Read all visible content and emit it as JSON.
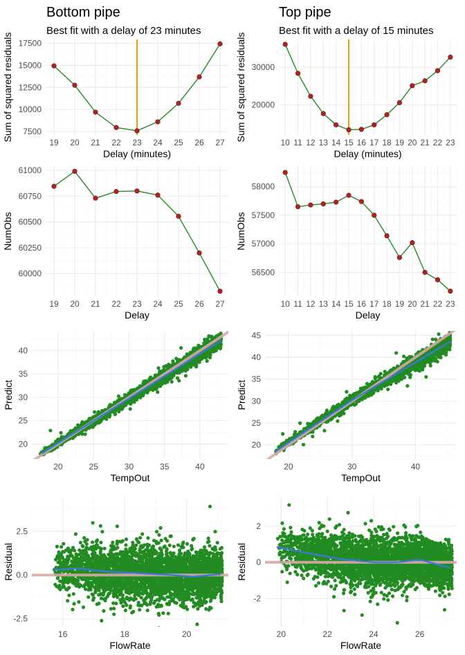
{
  "chart_data": [
    {
      "id": "bottom-ssr",
      "type": "line",
      "title": "Bottom pipe",
      "subtitle": "Best fit with a delay of 23 minutes",
      "xlabel": "Delay (minutes)",
      "ylabel": "Sum of squared residuals",
      "x": [
        19,
        20,
        21,
        22,
        23,
        24,
        25,
        26,
        27
      ],
      "y": [
        14950,
        12750,
        9700,
        7950,
        7580,
        8600,
        10700,
        13700,
        17450
      ],
      "xlim": [
        18.6,
        27.4
      ],
      "ylim": [
        7100,
        17950
      ],
      "xticks": [
        19,
        20,
        21,
        22,
        23,
        24,
        25,
        26,
        27
      ],
      "yticks": [
        7500,
        10000,
        12500,
        15000,
        17500
      ],
      "vline": 23,
      "vline_color": "#e69f00",
      "line_color": "#228b22",
      "point_color": "#b22222",
      "grid": true
    },
    {
      "id": "top-ssr",
      "type": "line",
      "title": "Top pipe",
      "subtitle": "Best fit with a delay of 15 minutes",
      "xlabel": "Delay (minutes)",
      "ylabel": "Sum of squared residuals",
      "x": [
        10,
        11,
        12,
        13,
        14,
        15,
        16,
        17,
        18,
        19,
        20,
        21,
        22,
        23
      ],
      "y": [
        36100,
        28400,
        22300,
        17700,
        14700,
        13400,
        13500,
        14700,
        17400,
        20600,
        25100,
        26400,
        29100,
        32700
      ],
      "xlim": [
        9.5,
        23.5
      ],
      "ylim": [
        12000,
        37400
      ],
      "xticks": [
        10,
        11,
        12,
        13,
        14,
        15,
        16,
        17,
        18,
        19,
        20,
        21,
        22,
        23
      ],
      "yticks": [
        20000,
        30000
      ],
      "vline": 15,
      "vline_color": "#e69f00",
      "line_color": "#228b22",
      "point_color": "#b22222",
      "grid": true
    },
    {
      "id": "bottom-numobs",
      "type": "line",
      "xlabel": "Delay",
      "ylabel": "NumObs",
      "x": [
        19,
        20,
        21,
        22,
        23,
        24,
        25,
        26,
        27
      ],
      "y": [
        60845,
        60990,
        60730,
        60795,
        60800,
        60760,
        60555,
        60200,
        59830
      ],
      "xlim": [
        18.6,
        27.4
      ],
      "ylim": [
        59780,
        61040
      ],
      "xticks": [
        19,
        20,
        21,
        22,
        23,
        24,
        25,
        26,
        27
      ],
      "yticks": [
        60000,
        60250,
        60500,
        60750,
        61000
      ],
      "line_color": "#228b22",
      "point_color": "#b22222",
      "grid": true
    },
    {
      "id": "top-numobs",
      "type": "line",
      "xlabel": "Delay",
      "ylabel": "NumObs",
      "x": [
        10,
        11,
        12,
        13,
        14,
        15,
        16,
        17,
        18,
        19,
        20,
        21,
        22,
        23
      ],
      "y": [
        58250,
        57650,
        57680,
        57700,
        57730,
        57850,
        57740,
        57500,
        57140,
        56760,
        57020,
        56500,
        56370,
        56170
      ],
      "xlim": [
        9.5,
        23.5
      ],
      "ylim": [
        56080,
        58360
      ],
      "xticks": [
        10,
        11,
        12,
        13,
        14,
        15,
        16,
        17,
        18,
        19,
        20,
        21,
        22,
        23
      ],
      "yticks": [
        56500,
        57000,
        57500,
        58000
      ],
      "line_color": "#228b22",
      "point_color": "#b22222",
      "grid": true
    },
    {
      "id": "bottom-pred",
      "type": "scatter",
      "xlabel": "TempOut",
      "ylabel": "Predict",
      "xlim": [
        16.3,
        44.0
      ],
      "ylim": [
        16.8,
        44.2
      ],
      "xticks": [
        20,
        25,
        30,
        35,
        40
      ],
      "yticks": [
        20,
        25,
        30,
        35,
        40
      ],
      "cloud_x_range": [
        17.5,
        43
      ],
      "cloud_spread": 0.7,
      "identity_line": true,
      "identity_color": "#d8a8a8",
      "smooth_line": {
        "x": [
          17.7,
          43
        ],
        "y": [
          18.0,
          42.2
        ]
      },
      "smooth_color": "#3c78d8",
      "point_color": "#228b22",
      "grid": true
    },
    {
      "id": "top-pred",
      "type": "scatter",
      "xlabel": "TempOut",
      "ylabel": "Predict",
      "xlim": [
        16.3,
        46.5
      ],
      "ylim": [
        16.8,
        46.0
      ],
      "xticks": [
        20,
        30,
        40
      ],
      "yticks": [
        20,
        25,
        30,
        35,
        40,
        45
      ],
      "cloud_x_range": [
        18,
        45.5
      ],
      "cloud_spread": 0.75,
      "identity_line": true,
      "identity_color": "#d8a8a8",
      "smooth_line": {
        "x": [
          18,
          30,
          45.5
        ],
        "y": [
          18.6,
          30.2,
          43.6
        ]
      },
      "smooth_color": "#3c78d8",
      "point_color": "#228b22",
      "grid": true
    },
    {
      "id": "bottom-resid",
      "type": "scatter",
      "xlabel": "FlowRate",
      "ylabel": "Residual",
      "xlim": [
        15.0,
        21.35
      ],
      "ylim": [
        -2.95,
        4.45
      ],
      "xticks": [
        16,
        18,
        20
      ],
      "yticks": [
        -2.5,
        0.0,
        2.5
      ],
      "cloud_x_range": [
        15.7,
        21.15
      ],
      "cloud_spread": 0.7,
      "hline": 0,
      "hline_color": "#d8a8a8",
      "smooth_line": {
        "x": [
          15.7,
          16.5,
          17.5,
          18.5,
          19.5,
          20.2,
          21.1
        ],
        "y": [
          0.3,
          0.38,
          0.18,
          0.1,
          0.0,
          -0.1,
          0.05
        ]
      },
      "smooth_color": "#3c78d8",
      "point_color": "#228b22",
      "grid": true
    },
    {
      "id": "top-resid",
      "type": "scatter",
      "xlabel": "FlowRate",
      "ylabel": "Residual",
      "xlim": [
        19.3,
        27.6
      ],
      "ylim": [
        -3.55,
        3.6
      ],
      "xticks": [
        20,
        22,
        24,
        26
      ],
      "yticks": [
        -2,
        0,
        2
      ],
      "cloud_x_range": [
        19.8,
        27.4
      ],
      "cloud_spread": 0.6,
      "hline": 0,
      "hline_color": "#d8a8a8",
      "smooth_line": {
        "x": [
          19.8,
          21,
          22.5,
          24,
          25,
          26,
          27.3
        ],
        "y": [
          0.85,
          0.55,
          0.2,
          0.0,
          0.0,
          0.15,
          -0.3
        ]
      },
      "smooth_color": "#3c78d8",
      "point_color": "#228b22",
      "grid": true
    }
  ]
}
